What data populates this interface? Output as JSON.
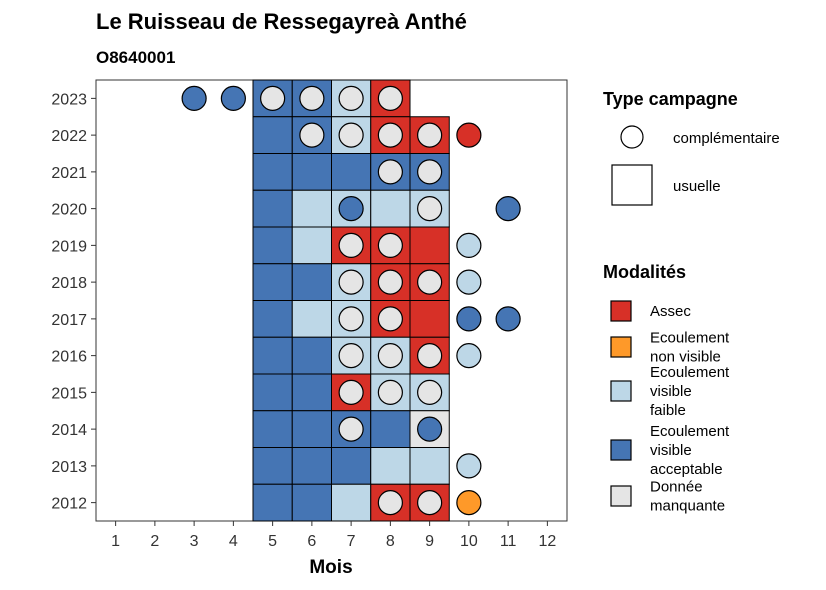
{
  "chart_data": {
    "type": "heatmap",
    "title": "Le Ruisseau de Ressegayreà Anthé",
    "subtitle": "O8640001",
    "xlabel": "Mois",
    "ylabel": "",
    "x_ticks": [
      1,
      2,
      3,
      4,
      5,
      6,
      7,
      8,
      9,
      10,
      11,
      12
    ],
    "y_ticks": [
      2012,
      2013,
      2014,
      2015,
      2016,
      2017,
      2018,
      2019,
      2020,
      2021,
      2022,
      2023
    ],
    "xlim": [
      0.5,
      12.5
    ],
    "ylim": [
      2011.5,
      2023.5
    ],
    "grid": false,
    "legend_position": "right",
    "colors": {
      "Assec": "#d73027",
      "Ecoulement non visible": "#fe9929",
      "Ecoulement visible faible": "#bdd7e7",
      "Ecoulement visible acceptable": "#4575b4",
      "Donnée manquante": "#e5e5e5",
      "complémentaire": "#ffffff"
    },
    "legend_campaign": {
      "title": "Type campagne",
      "items": [
        {
          "label": "complémentaire",
          "shape": "circle"
        },
        {
          "label": "usuelle",
          "shape": "square"
        }
      ]
    },
    "legend_modalities": {
      "title": "Modalités",
      "items": [
        {
          "key": "Assec",
          "lines": [
            "Assec"
          ]
        },
        {
          "key": "Ecoulement non visible",
          "lines": [
            "Ecoulement",
            "non visible"
          ]
        },
        {
          "key": "Ecoulement visible faible",
          "lines": [
            "Ecoulement",
            "visible",
            "faible"
          ]
        },
        {
          "key": "Ecoulement visible acceptable",
          "lines": [
            "Ecoulement",
            "visible",
            "acceptable"
          ]
        },
        {
          "key": "Donnée manquante",
          "lines": [
            "Donnée",
            "manquante"
          ]
        }
      ]
    },
    "tiles": [
      {
        "year": 2023,
        "month": 5,
        "mod": "Ecoulement visible acceptable"
      },
      {
        "year": 2023,
        "month": 6,
        "mod": "Ecoulement visible acceptable"
      },
      {
        "year": 2023,
        "month": 7,
        "mod": "Ecoulement visible faible"
      },
      {
        "year": 2023,
        "month": 8,
        "mod": "Assec"
      },
      {
        "year": 2022,
        "month": 5,
        "mod": "Ecoulement visible acceptable"
      },
      {
        "year": 2022,
        "month": 6,
        "mod": "Ecoulement visible acceptable"
      },
      {
        "year": 2022,
        "month": 7,
        "mod": "Ecoulement visible faible"
      },
      {
        "year": 2022,
        "month": 8,
        "mod": "Assec"
      },
      {
        "year": 2022,
        "month": 9,
        "mod": "Assec"
      },
      {
        "year": 2021,
        "month": 5,
        "mod": "Ecoulement visible acceptable"
      },
      {
        "year": 2021,
        "month": 6,
        "mod": "Ecoulement visible acceptable"
      },
      {
        "year": 2021,
        "month": 7,
        "mod": "Ecoulement visible acceptable"
      },
      {
        "year": 2021,
        "month": 8,
        "mod": "Ecoulement visible acceptable"
      },
      {
        "year": 2021,
        "month": 9,
        "mod": "Ecoulement visible acceptable"
      },
      {
        "year": 2020,
        "month": 5,
        "mod": "Ecoulement visible acceptable"
      },
      {
        "year": 2020,
        "month": 6,
        "mod": "Ecoulement visible faible"
      },
      {
        "year": 2020,
        "month": 7,
        "mod": "Ecoulement visible faible"
      },
      {
        "year": 2020,
        "month": 8,
        "mod": "Ecoulement visible faible"
      },
      {
        "year": 2020,
        "month": 9,
        "mod": "Ecoulement visible faible"
      },
      {
        "year": 2019,
        "month": 5,
        "mod": "Ecoulement visible acceptable"
      },
      {
        "year": 2019,
        "month": 6,
        "mod": "Ecoulement visible faible"
      },
      {
        "year": 2019,
        "month": 7,
        "mod": "Assec"
      },
      {
        "year": 2019,
        "month": 8,
        "mod": "Assec"
      },
      {
        "year": 2019,
        "month": 9,
        "mod": "Assec"
      },
      {
        "year": 2018,
        "month": 5,
        "mod": "Ecoulement visible acceptable"
      },
      {
        "year": 2018,
        "month": 6,
        "mod": "Ecoulement visible acceptable"
      },
      {
        "year": 2018,
        "month": 7,
        "mod": "Ecoulement visible faible"
      },
      {
        "year": 2018,
        "month": 8,
        "mod": "Assec"
      },
      {
        "year": 2018,
        "month": 9,
        "mod": "Assec"
      },
      {
        "year": 2017,
        "month": 5,
        "mod": "Ecoulement visible acceptable"
      },
      {
        "year": 2017,
        "month": 6,
        "mod": "Ecoulement visible faible"
      },
      {
        "year": 2017,
        "month": 7,
        "mod": "Ecoulement visible faible"
      },
      {
        "year": 2017,
        "month": 8,
        "mod": "Assec"
      },
      {
        "year": 2017,
        "month": 9,
        "mod": "Assec"
      },
      {
        "year": 2016,
        "month": 5,
        "mod": "Ecoulement visible acceptable"
      },
      {
        "year": 2016,
        "month": 6,
        "mod": "Ecoulement visible acceptable"
      },
      {
        "year": 2016,
        "month": 7,
        "mod": "Ecoulement visible faible"
      },
      {
        "year": 2016,
        "month": 8,
        "mod": "Ecoulement visible faible"
      },
      {
        "year": 2016,
        "month": 9,
        "mod": "Assec"
      },
      {
        "year": 2015,
        "month": 5,
        "mod": "Ecoulement visible acceptable"
      },
      {
        "year": 2015,
        "month": 6,
        "mod": "Ecoulement visible acceptable"
      },
      {
        "year": 2015,
        "month": 7,
        "mod": "Assec"
      },
      {
        "year": 2015,
        "month": 8,
        "mod": "Ecoulement visible faible"
      },
      {
        "year": 2015,
        "month": 9,
        "mod": "Ecoulement visible faible"
      },
      {
        "year": 2014,
        "month": 5,
        "mod": "Ecoulement visible acceptable"
      },
      {
        "year": 2014,
        "month": 6,
        "mod": "Ecoulement visible acceptable"
      },
      {
        "year": 2014,
        "month": 7,
        "mod": "Ecoulement visible acceptable"
      },
      {
        "year": 2014,
        "month": 8,
        "mod": "Ecoulement visible acceptable"
      },
      {
        "year": 2014,
        "month": 9,
        "mod": "Donnée manquante"
      },
      {
        "year": 2013,
        "month": 5,
        "mod": "Ecoulement visible acceptable"
      },
      {
        "year": 2013,
        "month": 6,
        "mod": "Ecoulement visible acceptable"
      },
      {
        "year": 2013,
        "month": 7,
        "mod": "Ecoulement visible acceptable"
      },
      {
        "year": 2013,
        "month": 8,
        "mod": "Ecoulement visible faible"
      },
      {
        "year": 2013,
        "month": 9,
        "mod": "Ecoulement visible faible"
      },
      {
        "year": 2012,
        "month": 5,
        "mod": "Ecoulement visible acceptable"
      },
      {
        "year": 2012,
        "month": 6,
        "mod": "Ecoulement visible acceptable"
      },
      {
        "year": 2012,
        "month": 7,
        "mod": "Ecoulement visible faible"
      },
      {
        "year": 2012,
        "month": 8,
        "mod": "Assec"
      },
      {
        "year": 2012,
        "month": 9,
        "mod": "Assec"
      }
    ],
    "points": [
      {
        "year": 2023,
        "month": 3,
        "mod": "Ecoulement visible acceptable"
      },
      {
        "year": 2023,
        "month": 4,
        "mod": "Ecoulement visible acceptable"
      },
      {
        "year": 2023,
        "month": 5,
        "mod": "Donnée manquante"
      },
      {
        "year": 2023,
        "month": 6,
        "mod": "Donnée manquante"
      },
      {
        "year": 2023,
        "month": 7,
        "mod": "Donnée manquante"
      },
      {
        "year": 2023,
        "month": 8,
        "mod": "Donnée manquante"
      },
      {
        "year": 2022,
        "month": 6,
        "mod": "Donnée manquante"
      },
      {
        "year": 2022,
        "month": 7,
        "mod": "Donnée manquante"
      },
      {
        "year": 2022,
        "month": 8,
        "mod": "Donnée manquante"
      },
      {
        "year": 2022,
        "month": 9,
        "mod": "Donnée manquante"
      },
      {
        "year": 2022,
        "month": 10,
        "mod": "Assec"
      },
      {
        "year": 2021,
        "month": 8,
        "mod": "Donnée manquante"
      },
      {
        "year": 2021,
        "month": 9,
        "mod": "Donnée manquante"
      },
      {
        "year": 2020,
        "month": 7,
        "mod": "Ecoulement visible acceptable"
      },
      {
        "year": 2020,
        "month": 9,
        "mod": "Donnée manquante"
      },
      {
        "year": 2020,
        "month": 11,
        "mod": "Ecoulement visible acceptable"
      },
      {
        "year": 2019,
        "month": 7,
        "mod": "Donnée manquante"
      },
      {
        "year": 2019,
        "month": 8,
        "mod": "Donnée manquante"
      },
      {
        "year": 2019,
        "month": 10,
        "mod": "Ecoulement visible faible"
      },
      {
        "year": 2018,
        "month": 7,
        "mod": "Donnée manquante"
      },
      {
        "year": 2018,
        "month": 8,
        "mod": "Donnée manquante"
      },
      {
        "year": 2018,
        "month": 9,
        "mod": "Donnée manquante"
      },
      {
        "year": 2018,
        "month": 10,
        "mod": "Ecoulement visible faible"
      },
      {
        "year": 2017,
        "month": 7,
        "mod": "Donnée manquante"
      },
      {
        "year": 2017,
        "month": 8,
        "mod": "Donnée manquante"
      },
      {
        "year": 2017,
        "month": 10,
        "mod": "Ecoulement visible acceptable"
      },
      {
        "year": 2017,
        "month": 11,
        "mod": "Ecoulement visible acceptable"
      },
      {
        "year": 2016,
        "month": 7,
        "mod": "Donnée manquante"
      },
      {
        "year": 2016,
        "month": 8,
        "mod": "Donnée manquante"
      },
      {
        "year": 2016,
        "month": 9,
        "mod": "Donnée manquante"
      },
      {
        "year": 2016,
        "month": 10,
        "mod": "Ecoulement visible faible"
      },
      {
        "year": 2015,
        "month": 7,
        "mod": "Donnée manquante"
      },
      {
        "year": 2015,
        "month": 8,
        "mod": "Donnée manquante"
      },
      {
        "year": 2015,
        "month": 9,
        "mod": "Donnée manquante"
      },
      {
        "year": 2014,
        "month": 7,
        "mod": "Donnée manquante"
      },
      {
        "year": 2014,
        "month": 9,
        "mod": "Ecoulement visible acceptable"
      },
      {
        "year": 2013,
        "month": 10,
        "mod": "Ecoulement visible faible"
      },
      {
        "year": 2012,
        "month": 8,
        "mod": "Donnée manquante"
      },
      {
        "year": 2012,
        "month": 9,
        "mod": "Donnée manquante"
      },
      {
        "year": 2012,
        "month": 10,
        "mod": "Ecoulement non visible"
      }
    ]
  }
}
